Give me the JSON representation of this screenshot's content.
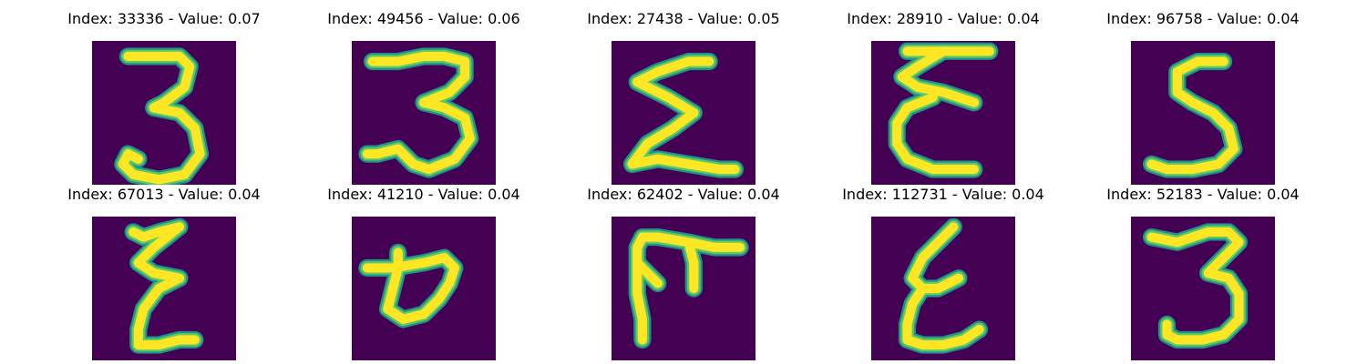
{
  "colors": {
    "background": "#440154",
    "stroke_edge": "#21918c",
    "stroke_mid": "#5ec962",
    "stroke_core": "#fde725"
  },
  "panels": [
    {
      "title": "Index: 33336 - Value: 0.07",
      "glyph": "three-digit"
    },
    {
      "title": "Index: 49456 - Value: 0.06",
      "glyph": "three-digit"
    },
    {
      "title": "Index: 27438 - Value: 0.05",
      "glyph": "sigma-shape"
    },
    {
      "title": "Index: 28910 - Value: 0.04",
      "glyph": "epsilon-shape"
    },
    {
      "title": "Index: 96758 - Value: 0.04",
      "glyph": "five-digit"
    },
    {
      "title": "Index: 67013 - Value: 0.04",
      "glyph": "z-shape"
    },
    {
      "title": "Index: 41210 - Value: 0.04",
      "glyph": "p-shape"
    },
    {
      "title": "Index: 62402 - Value: 0.04",
      "glyph": "f-shape"
    },
    {
      "title": "Index: 112731 - Value: 0.04",
      "glyph": "e-shape"
    },
    {
      "title": "Index: 52183 - Value: 0.04",
      "glyph": "three-digit"
    }
  ]
}
